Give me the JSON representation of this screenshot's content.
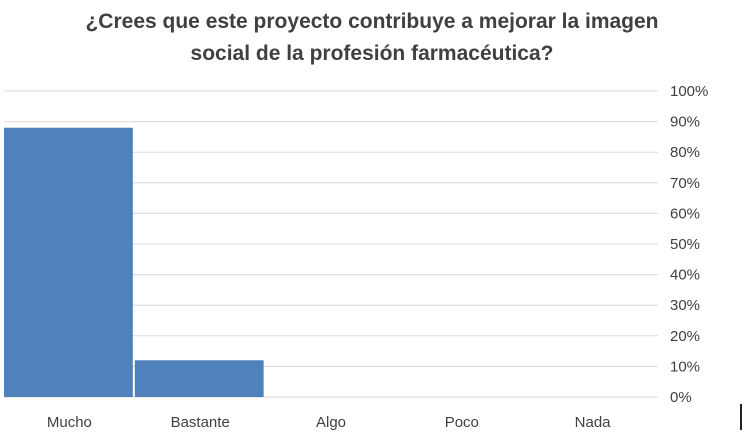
{
  "chart_data": {
    "type": "bar",
    "title_lines": [
      "¿Crees que este proyecto contribuye a mejorar la imagen",
      "social de la profesión farmacéutica?"
    ],
    "categories": [
      "Mucho",
      "Bastante",
      "Algo",
      "Poco",
      "Nada"
    ],
    "values": [
      88,
      12,
      0,
      0,
      0
    ],
    "y_axis": {
      "min": 0,
      "max": 100,
      "step": 10,
      "unit": "%",
      "position": "right",
      "tick_labels": [
        "0%",
        "10%",
        "20%",
        "30%",
        "40%",
        "50%",
        "60%",
        "70%",
        "80%",
        "90%",
        "100%"
      ]
    },
    "grid": true,
    "legend": "none",
    "colors": {
      "bar": "#4f81bd",
      "grid": "#d9d9d9",
      "text": "#404040"
    }
  }
}
